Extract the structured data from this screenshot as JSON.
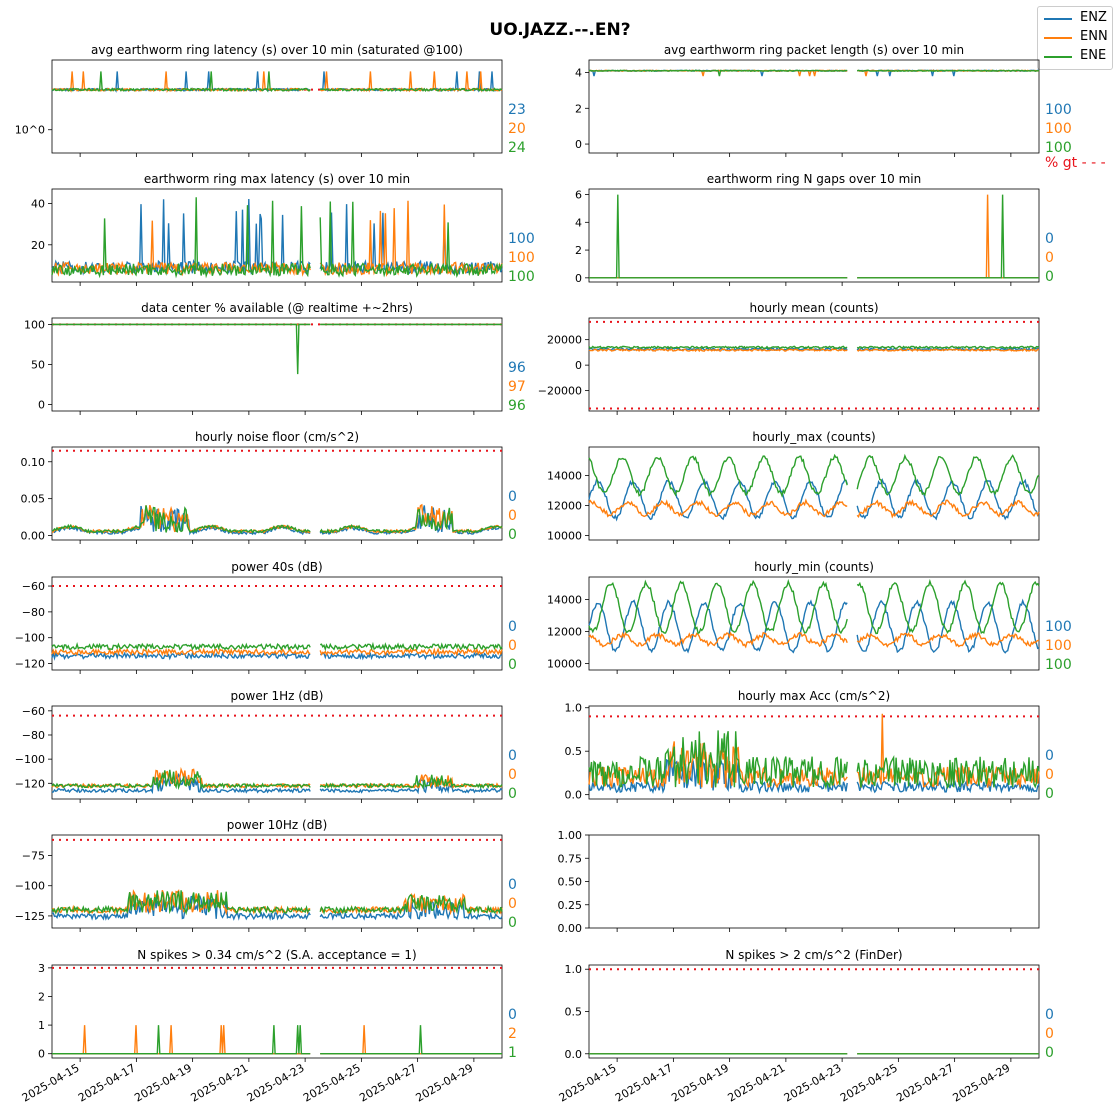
{
  "suptitle": "UO.JAZZ.--.EN?",
  "legend": [
    {
      "name": "ENZ",
      "color": "#1f77b4"
    },
    {
      "name": "ENN",
      "color": "#ff7f0e"
    },
    {
      "name": "ENE",
      "color": "#2ca02c"
    }
  ],
  "threshold_color": "#e8141c",
  "x_axis": {
    "range": [
      "2025-04-14",
      "2025-04-30"
    ],
    "tick_labels": [
      "2025-04-15",
      "2025-04-17",
      "2025-04-19",
      "2025-04-21",
      "2025-04-23",
      "2025-04-25",
      "2025-04-27",
      "2025-04-29"
    ]
  },
  "chart_data": [
    {
      "type": "line",
      "title": "avg earthworm ring latency (s)   over 10 min (saturated @100)",
      "log_y": true,
      "yticks": [
        {
          "v": 1,
          "label": "10^0"
        }
      ],
      "ylim": [
        0.55,
        6
      ],
      "threshold": 2.8,
      "channel_values": [
        "23",
        "20",
        "24"
      ],
      "series": [
        {
          "name": "ENZ",
          "base": 2.8
        },
        {
          "name": "ENN",
          "base": 2.8
        },
        {
          "name": "ENE",
          "base": 2.8
        }
      ]
    },
    {
      "type": "line",
      "title": "avg earthworm ring packet length (s)   over 10 min",
      "log_y": false,
      "yticks": [
        {
          "v": 0,
          "label": "0"
        },
        {
          "v": 2,
          "label": "2"
        },
        {
          "v": 4,
          "label": "4"
        }
      ],
      "ylim": [
        -0.5,
        4.7
      ],
      "channel_values": [
        "100",
        "100",
        "100"
      ],
      "extra_note": "% gt - - -",
      "series": [
        {
          "name": "ENZ",
          "base": 4.1
        },
        {
          "name": "ENN",
          "base": 4.1
        },
        {
          "name": "ENE",
          "base": 4.1
        }
      ]
    },
    {
      "type": "line",
      "title": "earthworm ring max latency (s)   over 10 min",
      "log_y": false,
      "yticks": [
        {
          "v": 20,
          "label": "20"
        },
        {
          "v": 40,
          "label": "40"
        }
      ],
      "ylim": [
        2,
        47
      ],
      "channel_values": [
        "100",
        "100",
        "100"
      ],
      "series": [
        {
          "name": "ENZ",
          "base": 9
        },
        {
          "name": "ENN",
          "base": 8.5
        },
        {
          "name": "ENE",
          "base": 8
        }
      ]
    },
    {
      "type": "line",
      "title": "earthworm ring N gaps   over 10 min",
      "log_y": false,
      "yticks": [
        {
          "v": 0,
          "label": "0"
        },
        {
          "v": 2,
          "label": "2"
        },
        {
          "v": 4,
          "label": "4"
        },
        {
          "v": 6,
          "label": "6"
        }
      ],
      "ylim": [
        -0.3,
        6.4
      ],
      "channel_values": [
        "0",
        "0",
        "0"
      ],
      "series": [
        {
          "name": "ENZ",
          "base": 0
        },
        {
          "name": "ENN",
          "base": 0
        },
        {
          "name": "ENE",
          "base": 0
        }
      ]
    },
    {
      "type": "line",
      "title": "data center % available (@ realtime +~2hrs)",
      "log_y": false,
      "yticks": [
        {
          "v": 0,
          "label": "0"
        },
        {
          "v": 50,
          "label": "50"
        },
        {
          "v": 100,
          "label": "100"
        }
      ],
      "ylim": [
        -8,
        108
      ],
      "threshold": 100,
      "channel_values": [
        "96",
        "97",
        "96"
      ],
      "series": [
        {
          "name": "ENZ",
          "base": 100
        },
        {
          "name": "ENN",
          "base": 100
        },
        {
          "name": "ENE",
          "base": 100
        }
      ]
    },
    {
      "type": "line",
      "title": "hourly mean (counts)",
      "log_y": false,
      "yticks": [
        {
          "v": -20000,
          "label": "−20000"
        },
        {
          "v": 0,
          "label": "0"
        },
        {
          "v": 20000,
          "label": "20000"
        }
      ],
      "ylim": [
        -36000,
        37000
      ],
      "threshold": [
        34000,
        -34000
      ],
      "channel_values": [],
      "series": [
        {
          "name": "ENZ",
          "base": 12500
        },
        {
          "name": "ENN",
          "base": 11800
        },
        {
          "name": "ENE",
          "base": 14000
        }
      ]
    },
    {
      "type": "line",
      "title": "hourly noise floor (cm/s^2)",
      "log_y": false,
      "yticks": [
        {
          "v": 0,
          "label": "0.00"
        },
        {
          "v": 0.05,
          "label": "0.05"
        },
        {
          "v": 0.1,
          "label": "0.10"
        }
      ],
      "ylim": [
        -0.006,
        0.12
      ],
      "threshold": 0.115,
      "channel_values": [
        "0",
        "0",
        "0"
      ],
      "series": [
        {
          "name": "ENZ",
          "base": 0.002
        },
        {
          "name": "ENN",
          "base": 0.004
        },
        {
          "name": "ENE",
          "base": 0.004
        }
      ]
    },
    {
      "type": "line",
      "title": "hourly_max (counts)",
      "log_y": false,
      "yticks": [
        {
          "v": 10000,
          "label": "10000"
        },
        {
          "v": 12000,
          "label": "12000"
        },
        {
          "v": 14000,
          "label": "14000"
        }
      ],
      "ylim": [
        9700,
        15900
      ],
      "channel_values": [],
      "series": [
        {
          "name": "ENZ",
          "base": 12400
        },
        {
          "name": "ENN",
          "base": 11800
        },
        {
          "name": "ENE",
          "base": 14000
        }
      ]
    },
    {
      "type": "line",
      "title": "power 40s (dB)",
      "log_y": false,
      "yticks": [
        {
          "v": -120,
          "label": "−120"
        },
        {
          "v": -100,
          "label": "−100"
        },
        {
          "v": -80,
          "label": "−80"
        },
        {
          "v": -60,
          "label": "−60"
        }
      ],
      "ylim": [
        -125,
        -53
      ],
      "threshold": -60,
      "channel_values": [
        "0",
        "0",
        "0"
      ],
      "series": [
        {
          "name": "ENZ",
          "base": -114
        },
        {
          "name": "ENN",
          "base": -111
        },
        {
          "name": "ENE",
          "base": -107
        }
      ]
    },
    {
      "type": "line",
      "title": "hourly_min (counts)",
      "log_y": false,
      "yticks": [
        {
          "v": 10000,
          "label": "10000"
        },
        {
          "v": 12000,
          "label": "12000"
        },
        {
          "v": 14000,
          "label": "14000"
        }
      ],
      "ylim": [
        9600,
        15400
      ],
      "channel_values": [
        "100",
        "100",
        "100"
      ],
      "series": [
        {
          "name": "ENZ",
          "base": 12300
        },
        {
          "name": "ENN",
          "base": 11500
        },
        {
          "name": "ENE",
          "base": 13500
        }
      ]
    },
    {
      "type": "line",
      "title": "power 1Hz (dB)",
      "log_y": false,
      "yticks": [
        {
          "v": -120,
          "label": "−120"
        },
        {
          "v": -100,
          "label": "−100"
        },
        {
          "v": -80,
          "label": "−80"
        },
        {
          "v": -60,
          "label": "−60"
        }
      ],
      "ylim": [
        -133,
        -56
      ],
      "threshold": -64,
      "channel_values": [
        "0",
        "0",
        "0"
      ],
      "series": [
        {
          "name": "ENZ",
          "base": -126
        },
        {
          "name": "ENN",
          "base": -122
        },
        {
          "name": "ENE",
          "base": -122
        }
      ]
    },
    {
      "type": "line",
      "title": "hourly max Acc (cm/s^2)",
      "log_y": false,
      "yticks": [
        {
          "v": 0,
          "label": "0.0"
        },
        {
          "v": 0.5,
          "label": "0.5"
        },
        {
          "v": 1,
          "label": "1.0"
        }
      ],
      "ylim": [
        -0.05,
        1.02
      ],
      "threshold": 0.9,
      "channel_values": [
        "0",
        "0",
        "0"
      ],
      "series": [
        {
          "name": "ENZ",
          "base": 0.03
        },
        {
          "name": "ENN",
          "base": 0.08
        },
        {
          "name": "ENE",
          "base": 0.08
        }
      ]
    },
    {
      "type": "line",
      "title": "power 10Hz (dB)",
      "log_y": false,
      "yticks": [
        {
          "v": -125,
          "label": "−125"
        },
        {
          "v": -100,
          "label": "−100"
        },
        {
          "v": -75,
          "label": "−75"
        }
      ],
      "ylim": [
        -135,
        -58
      ],
      "threshold": -62,
      "channel_values": [
        "0",
        "0",
        "0"
      ],
      "series": [
        {
          "name": "ENZ",
          "base": -125
        },
        {
          "name": "ENN",
          "base": -120
        },
        {
          "name": "ENE",
          "base": -120
        }
      ]
    },
    {
      "type": "empty",
      "title": "",
      "log_y": false,
      "yticks": [
        {
          "v": 0,
          "label": "0.00"
        },
        {
          "v": 0.25,
          "label": "0.25"
        },
        {
          "v": 0.5,
          "label": "0.50"
        },
        {
          "v": 0.75,
          "label": "0.75"
        },
        {
          "v": 1,
          "label": "1.00"
        }
      ],
      "ylim": [
        0,
        1
      ],
      "channel_values": [],
      "series": []
    },
    {
      "type": "line",
      "title": "N spikes > 0.34 cm/s^2 (S.A. acceptance = 1)",
      "log_y": false,
      "yticks": [
        {
          "v": 0,
          "label": "0"
        },
        {
          "v": 1,
          "label": "1"
        },
        {
          "v": 2,
          "label": "2"
        },
        {
          "v": 3,
          "label": "3"
        }
      ],
      "ylim": [
        -0.15,
        3.1
      ],
      "threshold": 3,
      "channel_values": [
        "0",
        "2",
        "1"
      ],
      "series": [
        {
          "name": "ENZ",
          "base": 0
        },
        {
          "name": "ENN",
          "base": 0
        },
        {
          "name": "ENE",
          "base": 0
        }
      ]
    },
    {
      "type": "line",
      "title": "N spikes > 2 cm/s^2 (FinDer)",
      "log_y": false,
      "yticks": [
        {
          "v": 0,
          "label": "0.0"
        },
        {
          "v": 0.5,
          "label": "0.5"
        },
        {
          "v": 1,
          "label": "1.0"
        }
      ],
      "ylim": [
        -0.05,
        1.05
      ],
      "threshold": 1,
      "channel_values": [
        "0",
        "0",
        "0"
      ],
      "series": [
        {
          "name": "ENZ",
          "base": 0
        },
        {
          "name": "ENN",
          "base": 0
        },
        {
          "name": "ENE",
          "base": 0
        }
      ]
    }
  ]
}
